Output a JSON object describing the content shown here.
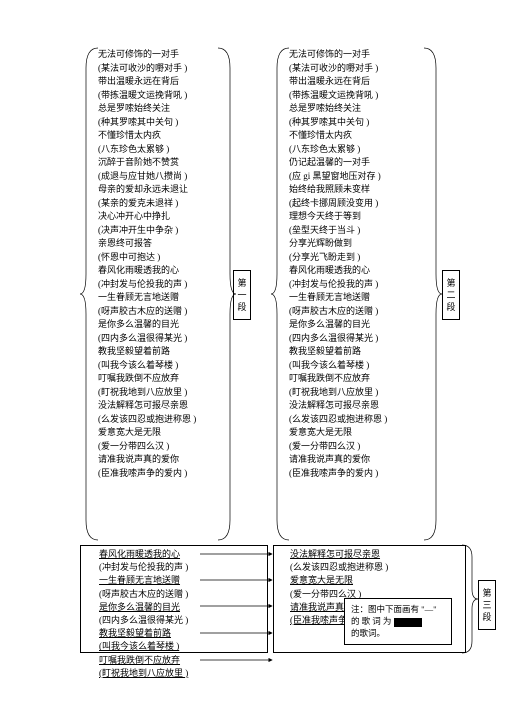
{
  "columns": {
    "left": [
      "无法可修饰的一对手",
      "(某法可收沙的嘢对手  )",
      "带出温暖永远在背后",
      "(带拣温暖文运挽背吼  )",
      "总是罗嗦始终关注",
      "(种其罗嗦其中关句  )",
      "不懂珍惜太内疚",
      "(八东珍色太累够  )",
      "沉醉于音阶她不赞赏",
      "(成退与应甘她八攒尚  )",
      "母亲的爱却永远未退让",
      "(某亲的爱克未退祥  )",
      "决心冲开心中挣扎",
      "(决声冲开生中争杂  )",
      "亲恩终可报答",
      "(怀恩中可抱达  )",
      "春风化雨暖透我的心",
      "(冲封发与伦投我的声  )",
      "一生眷顾无言地送赠",
      "(呀声胶古木应的送赠  )",
      "是你多么温馨的目光",
      "(四内多么温很得某光  )",
      "教我坚毅望着前路",
      "(叫我今该么着琴楼  )",
      "叮嘱我跌倒不应放弃",
      "(盯祝我地到八应放里  )",
      "没法解释怎可报尽亲恩",
      "(么发该四忍或抱进称恩  )",
      "爱意宽大是无限",
      "(爱一分带四么汉  )",
      "请准我说声真的爱你",
      "(臣准我嗦声争的爱内  )"
    ],
    "right": [
      "无法可修饰的一对手",
      "(某法可收沙的嘢对手  )",
      "带出温暖永远在背后",
      "(带拣温暖文运挽背吼  )",
      "总是罗嗦始终关注",
      "(种其罗嗦其中关句  )",
      "不懂珍惜太内疚",
      "(八东珍色太累够  )",
      "仍记起温馨的一对手",
      "(应 gi 黑望窗地压对存  )",
      "始终给我照顾未变样",
      "(起终卡挪周顾没变用  )",
      "理想今天终于等到",
      "(垒型天终于当斗  )",
      "分享光辉盼做到",
      "(分享光飞盼走到  )",
      "春风化雨暖透我的心",
      "(冲封发与伦投我的声  )",
      "一生眷顾无言地送赠",
      "(呀声胶古木应的送赠  )",
      "是你多么温馨的目光",
      "(四内多么温很得某光  )",
      "教我坚毅望着前路",
      "(叫我今该么着琴楼  )",
      "叮嘱我跌倒不应放弃",
      "(盯祝我地到八应放里  )",
      "没法解释怎可报尽亲恩",
      "(么发该四忍或抱进称恩  )",
      "爱意宽大是无限",
      "(爱一分带四么汉  )",
      "请准我说声真的爱你",
      "(臣准我嗦声争的爱内  )"
    ]
  },
  "boxes": {
    "bl": [
      {
        "t": "春风化雨暖透我的心",
        "u": 1
      },
      {
        "t": "(冲封发与伦投我的声  )",
        "u": 0
      },
      {
        "t": "一生眷顾无言地送赠",
        "u": 1
      },
      {
        "t": "(呀声胶古木应的送赠  )",
        "u": 0
      },
      {
        "t": "是你多么温馨的目光",
        "u": 1
      },
      {
        "t": "(四内多么温很得某光  )",
        "u": 0
      },
      {
        "t": "教我坚毅望着前路",
        "u": 1
      },
      {
        "t": "(叫我今该么着琴楼  )",
        "u": 1
      },
      {
        "t": "叮嘱我跌倒不应放弃",
        "u": 1
      },
      {
        "t": "(盯祝我地到八应放里  )",
        "u": 1
      }
    ],
    "br": [
      {
        "t": "没法解释怎可报尽亲恩",
        "u": 1
      },
      {
        "t": "(么发该四忍或抱进称恩  )",
        "u": 0
      },
      {
        "t": "爱意宽大是无限",
        "u": 1
      },
      {
        "t": "(爱一分带四么汉  )",
        "u": 0
      },
      {
        "t": "请准我说声真的爱你",
        "u": 1
      },
      {
        "t": "(臣准我嗦声争的爱内  )",
        "u": 1
      }
    ]
  },
  "labels": {
    "seg1": [
      "第",
      "一",
      "段"
    ],
    "seg2": [
      "第",
      "二",
      "段"
    ],
    "seg3": [
      "第",
      "三",
      "段"
    ]
  },
  "note": {
    "l1": "注：图中下面画有 \"—\"",
    "l2a": "的 歌 词 为",
    "l2b": "的歌词。"
  },
  "braces": {
    "stroke": "#000000",
    "width": 0.7
  }
}
